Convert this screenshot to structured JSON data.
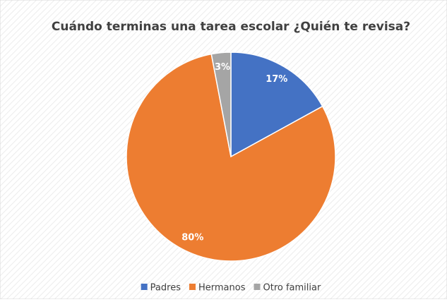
{
  "chart_data": {
    "type": "pie",
    "title": "Cuándo terminas una tarea escolar ¿Quién te revisa?",
    "categories": [
      "Padres",
      "Hermanos",
      "Otro familiar"
    ],
    "values": [
      17,
      80,
      3
    ],
    "value_labels": [
      "17%",
      "80%",
      "3%"
    ],
    "colors": [
      "#4472c4",
      "#ed7d31",
      "#a5a5a5"
    ],
    "legend": "bottom"
  }
}
